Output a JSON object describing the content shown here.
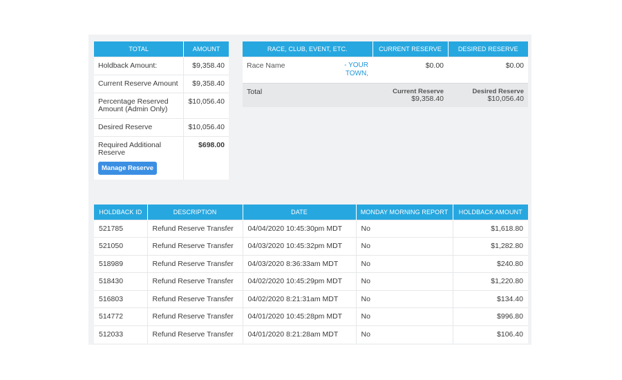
{
  "summary": {
    "headers": {
      "total": "TOTAL",
      "amount": "AMOUNT"
    },
    "rows": [
      {
        "label": "Holdback Amount:",
        "amount": "$9,358.40"
      },
      {
        "label": "Current Reserve Amount",
        "amount": "$9,358.40"
      },
      {
        "label": "Percentage Reserved Amount (Admin Only)",
        "amount": "$10,056.40"
      },
      {
        "label": "Desired Reserve",
        "amount": "$10,056.40"
      },
      {
        "label": "Required Additional Reserve",
        "amount": "$698.00"
      }
    ],
    "manage_button": "Manage Reserve"
  },
  "race": {
    "headers": {
      "race": "RACE, CLUB, EVENT, ETC.",
      "current": "CURRENT RESERVE",
      "desired": "DESIRED RESERVE"
    },
    "row": {
      "name": "Race Name",
      "town": "- YOUR TOWN,",
      "current": "$0.00",
      "desired": "$0.00"
    },
    "total": {
      "label": "Total",
      "current_label": "Current Reserve",
      "current_value": "$9,358.40",
      "desired_label": "Desired Reserve",
      "desired_value": "$10,056.40"
    }
  },
  "holdback": {
    "headers": {
      "id": "HOLDBACK ID",
      "description": "DESCRIPTION",
      "date": "DATE",
      "report": "MONDAY MORNING REPORT",
      "amount": "HOLDBACK AMOUNT"
    },
    "rows": [
      {
        "id": "521785",
        "description": "Refund Reserve Transfer",
        "date": "04/04/2020 10:45:30pm MDT",
        "report": "No",
        "amount": "$1,618.80"
      },
      {
        "id": "521050",
        "description": "Refund Reserve Transfer",
        "date": "04/03/2020 10:45:32pm MDT",
        "report": "No",
        "amount": "$1,282.80"
      },
      {
        "id": "518989",
        "description": "Refund Reserve Transfer",
        "date": "04/03/2020 8:36:33am MDT",
        "report": "No",
        "amount": "$240.80"
      },
      {
        "id": "518430",
        "description": "Refund Reserve Transfer",
        "date": "04/02/2020 10:45:29pm MDT",
        "report": "No",
        "amount": "$1,220.80"
      },
      {
        "id": "516803",
        "description": "Refund Reserve Transfer",
        "date": "04/02/2020 8:21:31am MDT",
        "report": "No",
        "amount": "$134.40"
      },
      {
        "id": "514772",
        "description": "Refund Reserve Transfer",
        "date": "04/01/2020 10:45:28pm MDT",
        "report": "No",
        "amount": "$996.80"
      },
      {
        "id": "512033",
        "description": "Refund Reserve Transfer",
        "date": "04/01/2020 8:21:28am MDT",
        "report": "No",
        "amount": "$106.40"
      }
    ]
  },
  "colors": {
    "header": "#27a7df",
    "button": "#3b8fe3",
    "link": "#1f95d8",
    "panel": "#f1f2f4"
  }
}
